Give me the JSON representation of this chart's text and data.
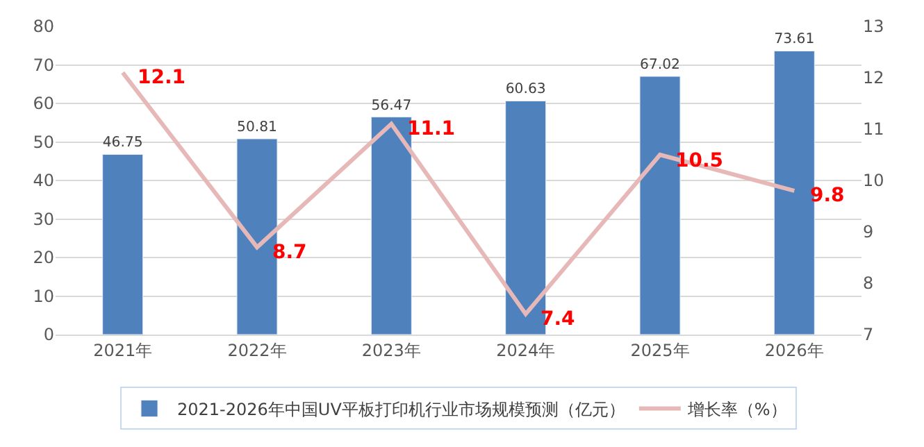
{
  "chart_data": {
    "type": "bar",
    "categories": [
      "2021年",
      "2022年",
      "2023年",
      "2024年",
      "2025年",
      "2026年"
    ],
    "series": [
      {
        "name": "2021-2026年中国UV平板打印机行业市场规模预测（亿元）",
        "color": "#4f81bd",
        "values": [
          46.75,
          50.81,
          56.47,
          60.63,
          67.02,
          73.61
        ]
      },
      {
        "name": "增长率（%）",
        "type": "line",
        "axis": "y2",
        "color": "#e6b9b8",
        "values": [
          12.1,
          8.7,
          11.1,
          7.4,
          10.5,
          9.8
        ]
      }
    ],
    "ylim": [
      0,
      80
    ],
    "yticks": [
      0,
      10,
      20,
      30,
      40,
      50,
      60,
      70,
      80
    ],
    "y2lim": [
      7,
      13
    ],
    "y2ticks": [
      7,
      8,
      9,
      10,
      11,
      12,
      13
    ],
    "data_labels": true,
    "grid": "y",
    "legend": "bottom",
    "marker": "none"
  }
}
